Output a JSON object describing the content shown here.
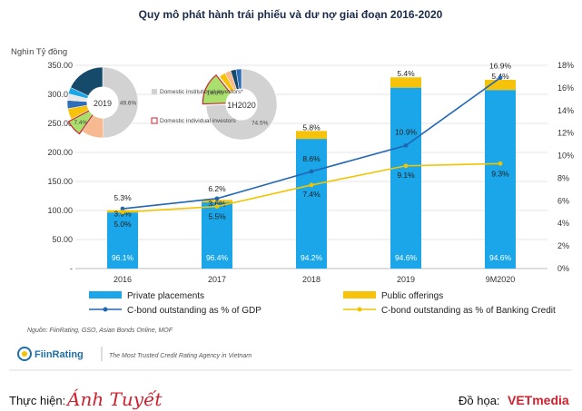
{
  "chart_data": {
    "type": "bar",
    "title": "Quy mô phát hành trái phiếu và dư nợ giai đoạn 2016-2020",
    "ylabel": "Nghìn Tỷ đồng",
    "categories": [
      "2016",
      "2017",
      "2018",
      "2019",
      "9M2020"
    ],
    "ylim": [
      0,
      350
    ],
    "yticks": [
      "-",
      "50.00",
      "100.00",
      "150.00",
      "200.00",
      "250.00",
      "300.00",
      "350.00"
    ],
    "y2lim": [
      0,
      18
    ],
    "y2ticks": [
      "0%",
      "2%",
      "4%",
      "6%",
      "8%",
      "10%",
      "12%",
      "14%",
      "16%",
      "18%"
    ],
    "series": [
      {
        "name": "Private placements",
        "kind": "bar",
        "color": "#1aa6e8",
        "values": [
          96.6,
          114.0,
          223.3,
          311.5,
          307.5
        ],
        "labels": [
          "96.1%",
          "96.4%",
          "94.2%",
          "94.6%",
          "94.6%"
        ]
      },
      {
        "name": "Public offerings",
        "kind": "bar",
        "color": "#f7c20a",
        "values": [
          3.9,
          4.3,
          13.7,
          17.8,
          17.6
        ],
        "labels": [
          "3.9%",
          "3.6%",
          "5.8%",
          "5.4%",
          "5.4%"
        ]
      },
      {
        "name": "C-bond outstanding as % of GDP",
        "kind": "line",
        "color": "#1f66b5",
        "values": [
          5.3,
          6.2,
          8.6,
          10.9,
          16.9
        ],
        "labels": [
          "5.3%",
          "6.2%",
          "8.6%",
          "10.9%",
          "16.9%"
        ]
      },
      {
        "name": "C-bond outstanding as % of Banking Credit",
        "kind": "line",
        "color": "#f2c400",
        "values": [
          5.0,
          5.5,
          7.4,
          9.1,
          9.3
        ],
        "labels": [
          "5.0%",
          "5.5%",
          "7.4%",
          "9.1%",
          "9.3%"
        ]
      }
    ],
    "pies": [
      {
        "label": "2019",
        "slices": [
          {
            "value": 49.6,
            "label": "49.6%",
            "color": "#d2d2d2"
          },
          {
            "value": 10.2,
            "label": "",
            "color": "#f7b98f"
          },
          {
            "value": 7.4,
            "label": "7.4%",
            "color": "#a9df6c"
          },
          {
            "value": 5.0,
            "label": "",
            "color": "#f7c20a"
          },
          {
            "value": 3.8,
            "label": "",
            "color": "#2e6db8"
          },
          {
            "value": 3.0,
            "label": "",
            "color": "#e8e8e8"
          },
          {
            "value": 3.0,
            "label": "",
            "color": "#1aa6e8"
          },
          {
            "value": 18.0,
            "label": "",
            "color": "#154a6a"
          }
        ]
      },
      {
        "label": "1H2020",
        "slices": [
          {
            "value": 74.5,
            "label": "74.5%",
            "color": "#d2d2d2"
          },
          {
            "value": 14.8,
            "label": "14.8%",
            "color": "#a9df6c"
          },
          {
            "value": 3.0,
            "label": "",
            "color": "#f7c20a"
          },
          {
            "value": 2.7,
            "label": "",
            "color": "#f7b98f"
          },
          {
            "value": 2.5,
            "label": "",
            "color": "#154a6a"
          },
          {
            "value": 2.5,
            "label": "",
            "color": "#2e6db8"
          }
        ]
      }
    ],
    "pie_legend": [
      {
        "label": "Domestic institutional investors*",
        "color": "#d2d2d2"
      },
      {
        "label": "Domestic individual investors",
        "color": "#d0202e"
      }
    ]
  },
  "source": "Nguồn: FiinRating, GSO, Asian Bonds Online, MOF",
  "brand": {
    "name": "FiinRating",
    "tagline": "The Most Trusted Credit Rating Agency in Vietnam"
  },
  "credits": {
    "author_label": "Thực hiện:",
    "author_name": "Ánh Tuyết",
    "design_label": "Đồ họa:",
    "publisher": "VETmedia"
  }
}
